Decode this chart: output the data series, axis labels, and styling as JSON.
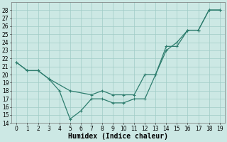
{
  "x_line1": [
    0,
    1,
    2,
    3,
    4,
    5,
    6,
    7,
    8,
    9,
    10,
    11,
    12,
    13,
    14,
    15,
    16,
    17,
    18,
    19
  ],
  "y_line1": [
    21.5,
    20.5,
    20.5,
    19.5,
    18.0,
    14.5,
    15.5,
    17.0,
    17.0,
    16.5,
    16.5,
    17.0,
    17.0,
    20.0,
    23.0,
    24.0,
    25.5,
    25.5,
    28.0,
    28.0
  ],
  "x_line2": [
    0,
    1,
    2,
    3,
    5,
    7,
    8,
    9,
    10,
    11,
    12,
    13,
    14,
    15,
    16,
    17,
    18,
    19
  ],
  "y_line2": [
    21.5,
    20.5,
    20.5,
    19.5,
    18.0,
    17.5,
    18.0,
    17.5,
    17.5,
    17.5,
    20.0,
    20.0,
    23.5,
    23.5,
    25.5,
    25.5,
    28.0,
    28.0
  ],
  "line_color": "#2e7d6e",
  "bg_color": "#cce8e4",
  "grid_color": "#a0ccc6",
  "xlabel": "Humidex (Indice chaleur)",
  "xlabel_fontsize": 7,
  "tick_fontsize": 5.5,
  "ylim": [
    14,
    29
  ],
  "xlim": [
    -0.5,
    19.5
  ],
  "yticks": [
    14,
    15,
    16,
    17,
    18,
    19,
    20,
    21,
    22,
    23,
    24,
    25,
    26,
    27,
    28
  ],
  "xticks": [
    0,
    1,
    2,
    3,
    4,
    5,
    6,
    7,
    8,
    9,
    10,
    11,
    12,
    13,
    14,
    15,
    16,
    17,
    18,
    19
  ]
}
